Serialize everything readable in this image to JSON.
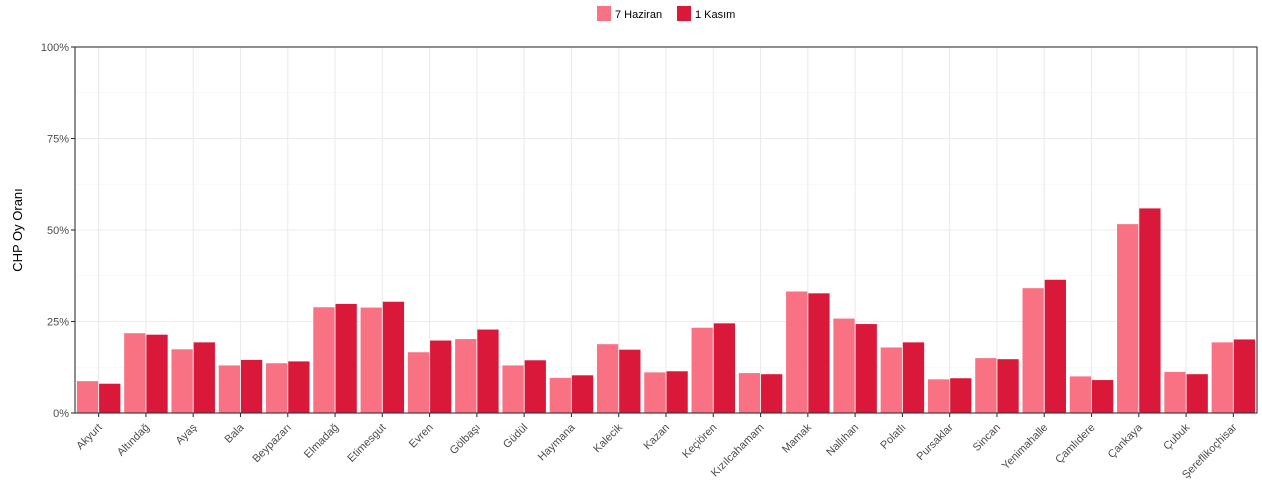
{
  "chart_data": {
    "type": "bar",
    "ylabel": "CHP Oy Oranı",
    "xlabel": "",
    "ylim": [
      0,
      100
    ],
    "yticks": [
      0,
      25,
      50,
      75,
      100
    ],
    "ytick_labels": [
      "0%",
      "25%",
      "50%",
      "75%",
      "100%"
    ],
    "grid": true,
    "legend_position": "top",
    "categories": [
      "Akyurt",
      "Altındağ",
      "Ayaş",
      "Bala",
      "Beypazarı",
      "Elmadağ",
      "Etimesgut",
      "Evren",
      "Gölbaşı",
      "Güdül",
      "Haymana",
      "Kalecik",
      "Kazan",
      "Keçiören",
      "Kızılcahamam",
      "Mamak",
      "Nallıhan",
      "Polatlı",
      "Pursaklar",
      "Sincan",
      "Yenimahalle",
      "Çamlıdere",
      "Çankaya",
      "Çubuk",
      "Şereflikoçhisar"
    ],
    "series": [
      {
        "name": "7 Haziran",
        "color": "#f87284",
        "values": [
          8.7,
          21.8,
          17.4,
          13.0,
          13.6,
          28.9,
          28.8,
          16.6,
          20.2,
          13.0,
          9.6,
          18.8,
          11.1,
          23.3,
          10.9,
          33.2,
          25.8,
          17.9,
          9.2,
          15.0,
          34.1,
          10.0,
          51.6,
          11.2,
          19.3
        ]
      },
      {
        "name": "1 Kasım",
        "color": "#d9183a",
        "values": [
          8.0,
          21.4,
          19.3,
          14.5,
          14.1,
          29.8,
          30.4,
          19.8,
          22.8,
          14.4,
          10.3,
          17.3,
          11.4,
          24.5,
          10.6,
          32.7,
          24.3,
          19.3,
          9.5,
          14.7,
          36.4,
          9.0,
          55.9,
          10.6,
          20.1
        ]
      }
    ]
  }
}
